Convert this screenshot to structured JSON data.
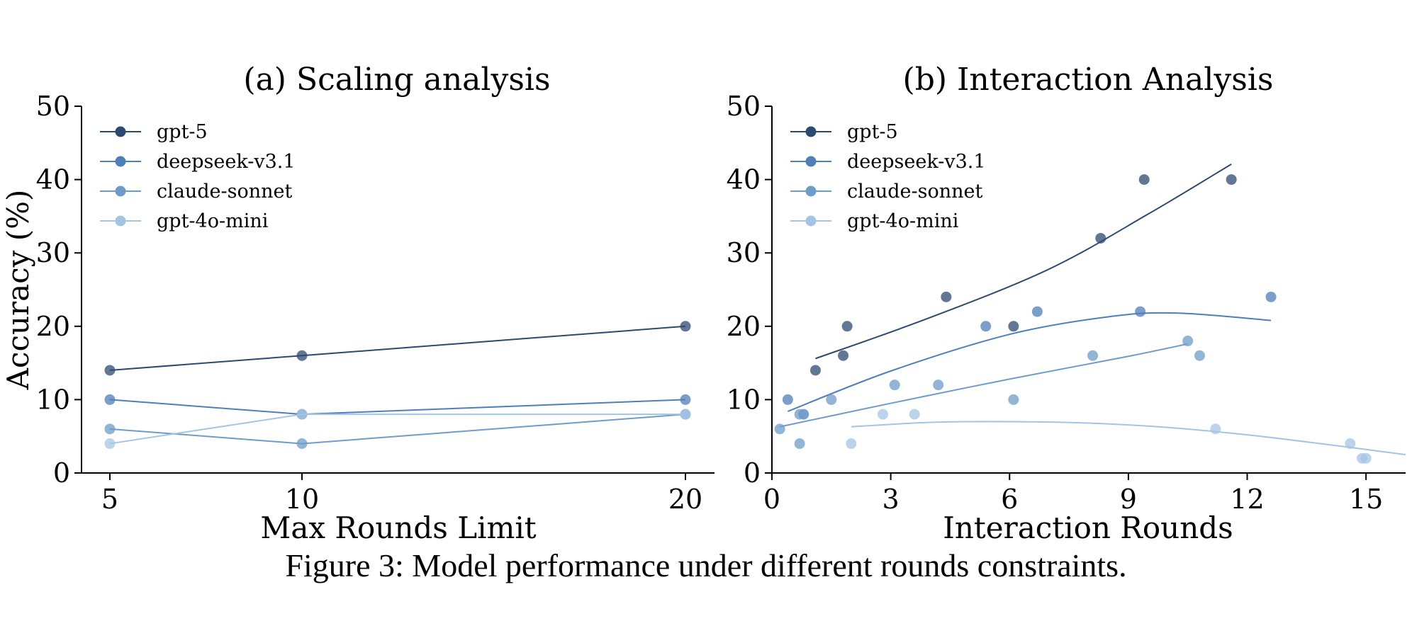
{
  "caption": "Figure 3: Model performance under different rounds constraints.",
  "colors": {
    "gpt-5": "#2c4a70",
    "deepseek-v3.1": "#4f7fb8",
    "claude-sonnet": "#6e9cca",
    "gpt-4o-mini": "#a4c4e4"
  },
  "chart_data": [
    {
      "type": "line",
      "title": "(a) Scaling analysis",
      "xlabel": "Max Rounds Limit",
      "ylabel": "Accuracy (%)",
      "ylim": [
        0,
        50
      ],
      "yticks": [
        0,
        10,
        20,
        30,
        40,
        50
      ],
      "categories": [
        "5",
        "10",
        "20"
      ],
      "grid": false,
      "legend_position": "top-left",
      "series": [
        {
          "name": "gpt-5",
          "values": [
            14,
            16,
            20
          ]
        },
        {
          "name": "deepseek-v3.1",
          "values": [
            10,
            8,
            10
          ]
        },
        {
          "name": "claude-sonnet",
          "values": [
            6,
            4,
            8
          ]
        },
        {
          "name": "gpt-4o-mini",
          "values": [
            4,
            8,
            8
          ]
        }
      ]
    },
    {
      "type": "scatter",
      "title": "(b) Interaction Analysis",
      "xlabel": "Interaction Rounds",
      "ylabel": "",
      "xlim": [
        0,
        16
      ],
      "ylim": [
        0,
        50
      ],
      "xticks": [
        0,
        3,
        6,
        9,
        12,
        15
      ],
      "yticks": [
        0,
        10,
        20,
        30,
        40,
        50
      ],
      "grid": false,
      "legend_position": "top-left",
      "series": [
        {
          "name": "gpt-5",
          "points": [
            [
              1.1,
              14
            ],
            [
              1.8,
              16
            ],
            [
              1.9,
              20
            ],
            [
              4.4,
              24
            ],
            [
              6.1,
              20
            ],
            [
              8.3,
              32
            ],
            [
              9.4,
              40
            ],
            [
              11.6,
              40
            ]
          ],
          "fit": [
            [
              1.1,
              15.6
            ],
            [
              4.0,
              21.2
            ],
            [
              7.0,
              27.8
            ],
            [
              9.5,
              35.3
            ],
            [
              11.6,
              42.1
            ]
          ]
        },
        {
          "name": "deepseek-v3.1",
          "points": [
            [
              0.4,
              10
            ],
            [
              0.8,
              8
            ],
            [
              5.4,
              20
            ],
            [
              6.7,
              22
            ],
            [
              9.3,
              22
            ],
            [
              12.6,
              24
            ]
          ],
          "fit": [
            [
              0.4,
              8.4
            ],
            [
              3.0,
              13.9
            ],
            [
              6.0,
              18.9
            ],
            [
              8.5,
              21.3
            ],
            [
              10.2,
              21.8
            ],
            [
              12.6,
              20.8
            ]
          ]
        },
        {
          "name": "claude-sonnet",
          "points": [
            [
              0.2,
              6
            ],
            [
              0.7,
              4
            ],
            [
              0.7,
              8
            ],
            [
              1.5,
              10
            ],
            [
              3.1,
              12
            ],
            [
              4.2,
              12
            ],
            [
              6.1,
              10
            ],
            [
              8.1,
              16
            ],
            [
              10.5,
              18
            ],
            [
              10.8,
              16
            ]
          ],
          "fit": [
            [
              0.2,
              6.3
            ],
            [
              3.0,
              9.5
            ],
            [
              6.0,
              12.8
            ],
            [
              9.0,
              15.9
            ],
            [
              10.5,
              17.6
            ]
          ]
        },
        {
          "name": "gpt-4o-mini",
          "points": [
            [
              2.0,
              4
            ],
            [
              2.8,
              8
            ],
            [
              3.6,
              8
            ],
            [
              11.2,
              6
            ],
            [
              14.6,
              4
            ],
            [
              14.9,
              2
            ],
            [
              15.0,
              2
            ]
          ],
          "fit": [
            [
              2.0,
              6.3
            ],
            [
              4.0,
              6.9
            ],
            [
              6.0,
              7.0
            ],
            [
              8.0,
              6.8
            ],
            [
              10.0,
              6.2
            ],
            [
              12.0,
              5.2
            ],
            [
              14.0,
              3.9
            ],
            [
              16.0,
              2.5
            ]
          ]
        }
      ]
    }
  ]
}
